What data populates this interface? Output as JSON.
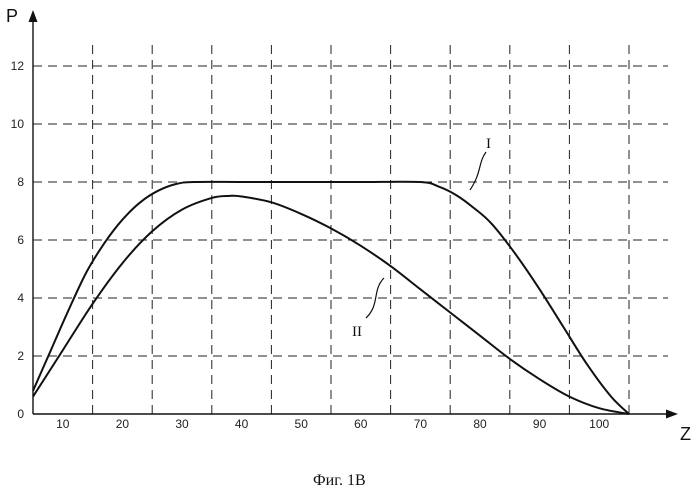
{
  "chart_data": {
    "type": "line",
    "title": "",
    "xlabel": "Z",
    "ylabel": "P",
    "xlim": [
      5,
      111
    ],
    "ylim": [
      0,
      13
    ],
    "x_ticks": [
      10,
      20,
      30,
      40,
      50,
      60,
      70,
      80,
      90,
      100
    ],
    "y_ticks": [
      0,
      2,
      4,
      6,
      8,
      10,
      12
    ],
    "grid": true,
    "grid_style": "dashed",
    "legend": "none",
    "series": [
      {
        "name": "I",
        "x": [
          5,
          8,
          11,
          14,
          17,
          20,
          23,
          26,
          29,
          32,
          40,
          50,
          60,
          70,
          73,
          76,
          79,
          82,
          86,
          90,
          94,
          98,
          102,
          105
        ],
        "y": [
          0.8,
          2.2,
          3.6,
          4.9,
          5.9,
          6.7,
          7.3,
          7.7,
          7.93,
          8.0,
          8.0,
          8.0,
          8.0,
          8.0,
          7.85,
          7.55,
          7.1,
          6.55,
          5.5,
          4.3,
          3.0,
          1.7,
          0.6,
          0.0
        ]
      },
      {
        "name": "II",
        "x": [
          5,
          10,
          15,
          20,
          25,
          30,
          35,
          38,
          40,
          45,
          50,
          55,
          60,
          65,
          70,
          75,
          80,
          85,
          90,
          95,
          100,
          105
        ],
        "y": [
          0.6,
          2.2,
          3.8,
          5.2,
          6.3,
          7.05,
          7.45,
          7.52,
          7.5,
          7.3,
          6.9,
          6.4,
          5.8,
          5.1,
          4.3,
          3.5,
          2.7,
          1.9,
          1.2,
          0.6,
          0.2,
          0.0
        ]
      }
    ],
    "annotations": [
      "I",
      "II"
    ],
    "caption": "Фиг. 1B"
  }
}
